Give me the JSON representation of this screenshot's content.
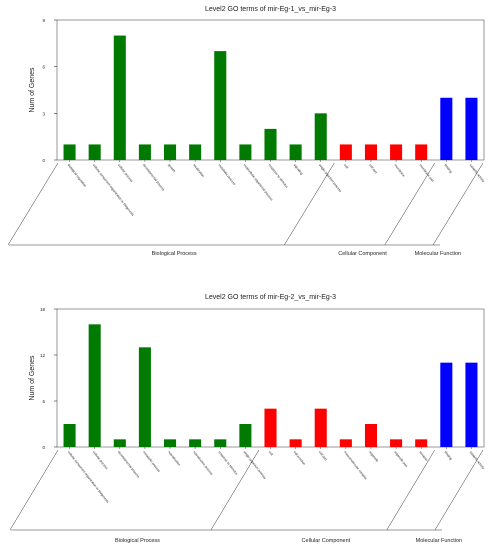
{
  "chart_data": [
    {
      "type": "bar",
      "title": "Level2 GO terms of mir-Eg-1_vs_mir-Eg-3",
      "ylabel": "Num of Genes",
      "xlabel": "",
      "ylim": [
        0,
        9
      ],
      "yticks": [
        0,
        3,
        6,
        9
      ],
      "grid": false,
      "categories": [
        "biological regulation",
        "cellular component organization or biogenesis",
        "cellular process",
        "developmental process",
        "growth",
        "localization",
        "metabolic process",
        "multicellular organismal process",
        "response to stimulus",
        "signaling",
        "single-organism process",
        "cell",
        "cell part",
        "membrane",
        "membrane part",
        "binding",
        "catalytic activity"
      ],
      "values": [
        1,
        1,
        8,
        1,
        1,
        1,
        7,
        1,
        2,
        1,
        3,
        1,
        1,
        1,
        1,
        4,
        4
      ],
      "groups": [
        {
          "name": "Biological Process",
          "start": 0,
          "end": 10,
          "color": "#007a00"
        },
        {
          "name": "Cellular Component",
          "start": 11,
          "end": 14,
          "color": "#ff0000"
        },
        {
          "name": "Molecular Function",
          "start": 15,
          "end": 16,
          "color": "#0000ff"
        }
      ]
    },
    {
      "type": "bar",
      "title": "Level2 GO terms of mir-Eg-2_vs_mir-Eg-3",
      "ylabel": "Num of Genes",
      "xlabel": "",
      "ylim": [
        0,
        18
      ],
      "yticks": [
        0,
        6,
        12,
        18
      ],
      "grid": false,
      "categories": [
        "cellular component organization or biogenesis",
        "cellular process",
        "developmental process",
        "metabolic process",
        "reproduction",
        "reproductive process",
        "response to stimulus",
        "single-organism process",
        "cell",
        "cell junction",
        "cell part",
        "macromolecular complex",
        "organelle",
        "organelle part",
        "synapse",
        "binding",
        "catalytic activity"
      ],
      "values": [
        3,
        16,
        1,
        13,
        1,
        1,
        1,
        3,
        5,
        1,
        5,
        1,
        3,
        1,
        1,
        11,
        11
      ],
      "groups": [
        {
          "name": "Biological Process",
          "start": 0,
          "end": 7,
          "color": "#007a00"
        },
        {
          "name": "Cellular Component",
          "start": 8,
          "end": 14,
          "color": "#ff0000"
        },
        {
          "name": "Molecular Function",
          "start": 15,
          "end": 16,
          "color": "#0000ff"
        }
      ]
    }
  ]
}
